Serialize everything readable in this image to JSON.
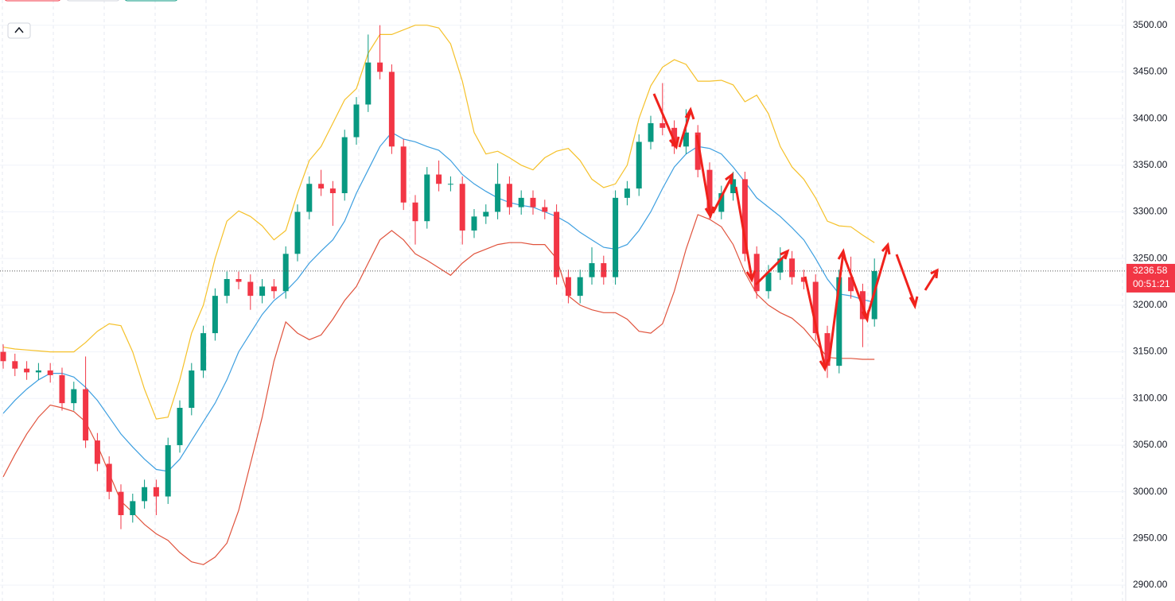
{
  "chart_data": {
    "type": "candlestick",
    "open": [
      3150,
      3140,
      3132,
      3128,
      3130,
      3125,
      3095,
      3110,
      3055,
      3030,
      3000,
      2975,
      2990,
      3005,
      2995,
      3050,
      3090,
      3130,
      3170,
      3210,
      3228,
      3225,
      3210,
      3220,
      3215,
      3255,
      3300,
      3330,
      3325,
      3320,
      3380,
      3415,
      3460,
      3450,
      3370,
      3310,
      3290,
      3340,
      3330,
      3330,
      3280,
      3295,
      3300,
      3330,
      3305,
      3315,
      3305,
      3300,
      3230,
      3210,
      3230,
      3245,
      3230,
      3315,
      3325,
      3375,
      3395,
      3390,
      3370,
      3385,
      3345,
      3300,
      3320,
      3335,
      3255,
      3215,
      3235,
      3250,
      3230,
      3225,
      3170,
      3135,
      3230,
      3215,
      3185
    ],
    "high": [
      3158,
      3148,
      3140,
      3138,
      3138,
      3133,
      3118,
      3145,
      3063,
      3038,
      3008,
      2998,
      3013,
      3013,
      3058,
      3098,
      3138,
      3178,
      3218,
      3236,
      3236,
      3233,
      3228,
      3228,
      3263,
      3308,
      3338,
      3345,
      3333,
      3388,
      3423,
      3490,
      3500,
      3458,
      3378,
      3318,
      3348,
      3355,
      3338,
      3338,
      3303,
      3308,
      3352,
      3338,
      3323,
      3323,
      3313,
      3308,
      3238,
      3238,
      3262,
      3253,
      3323,
      3333,
      3383,
      3403,
      3438,
      3398,
      3410,
      3393,
      3353,
      3328,
      3343,
      3343,
      3263,
      3243,
      3262,
      3258,
      3238,
      3233,
      3178,
      3238,
      3252,
      3223,
      3250
    ],
    "low": [
      3132,
      3124,
      3120,
      3120,
      3117,
      3087,
      3087,
      3047,
      3022,
      2992,
      2960,
      2967,
      2982,
      2975,
      2987,
      3042,
      3082,
      3122,
      3162,
      3202,
      3217,
      3195,
      3202,
      3207,
      3207,
      3247,
      3292,
      3317,
      3285,
      3312,
      3372,
      3407,
      3442,
      3362,
      3302,
      3265,
      3282,
      3322,
      3322,
      3265,
      3272,
      3287,
      3292,
      3297,
      3297,
      3297,
      3292,
      3222,
      3202,
      3202,
      3222,
      3222,
      3222,
      3307,
      3317,
      3367,
      3382,
      3362,
      3362,
      3337,
      3292,
      3292,
      3312,
      3247,
      3207,
      3207,
      3227,
      3222,
      3217,
      3162,
      3122,
      3127,
      3207,
      3155,
      3177
    ],
    "close": [
      3140,
      3132,
      3128,
      3130,
      3125,
      3095,
      3110,
      3055,
      3030,
      3000,
      2975,
      2990,
      3005,
      2995,
      3050,
      3090,
      3130,
      3170,
      3210,
      3228,
      3225,
      3210,
      3220,
      3215,
      3255,
      3300,
      3330,
      3325,
      3320,
      3380,
      3415,
      3460,
      3450,
      3370,
      3310,
      3290,
      3340,
      3330,
      3330,
      3280,
      3295,
      3300,
      3330,
      3305,
      3315,
      3305,
      3300,
      3230,
      3210,
      3230,
      3245,
      3230,
      3315,
      3325,
      3375,
      3395,
      3390,
      3370,
      3385,
      3345,
      3300,
      3320,
      3335,
      3255,
      3215,
      3235,
      3250,
      3230,
      3225,
      3170,
      3135,
      3230,
      3215,
      3185,
      3236.58
    ],
    "upper_band": [
      3155,
      3153,
      3152,
      3151,
      3150,
      3150,
      3150,
      3160,
      3172,
      3180,
      3178,
      3150,
      3110,
      3078,
      3080,
      3120,
      3170,
      3200,
      3250,
      3290,
      3301,
      3295,
      3285,
      3270,
      3280,
      3320,
      3355,
      3370,
      3395,
      3420,
      3432,
      3470,
      3490,
      3490,
      3495,
      3500,
      3500,
      3497,
      3480,
      3440,
      3385,
      3362,
      3365,
      3358,
      3350,
      3345,
      3358,
      3365,
      3368,
      3355,
      3335,
      3326,
      3330,
      3350,
      3400,
      3435,
      3455,
      3463,
      3458,
      3440,
      3440,
      3441,
      3436,
      3418,
      3425,
      3405,
      3370,
      3348,
      3335,
      3315,
      3290,
      3285,
      3284,
      3275,
      3267
    ],
    "middle_band": [
      3084,
      3098,
      3110,
      3120,
      3127,
      3127,
      3123,
      3112,
      3098,
      3080,
      3062,
      3048,
      3035,
      3024,
      3022,
      3035,
      3055,
      3075,
      3095,
      3120,
      3150,
      3170,
      3190,
      3205,
      3215,
      3228,
      3245,
      3258,
      3270,
      3290,
      3320,
      3345,
      3370,
      3385,
      3378,
      3375,
      3370,
      3366,
      3355,
      3340,
      3330,
      3322,
      3315,
      3310,
      3307,
      3305,
      3300,
      3295,
      3288,
      3278,
      3270,
      3262,
      3260,
      3265,
      3280,
      3300,
      3325,
      3348,
      3362,
      3370,
      3368,
      3362,
      3348,
      3332,
      3315,
      3305,
      3295,
      3283,
      3270,
      3250,
      3228,
      3212,
      3210,
      3206,
      3203
    ],
    "lower_band": [
      3016,
      3040,
      3062,
      3080,
      3093,
      3090,
      3086,
      3075,
      3050,
      3020,
      2990,
      2978,
      2965,
      2955,
      2948,
      2935,
      2925,
      2922,
      2930,
      2945,
      2980,
      3030,
      3080,
      3140,
      3182,
      3170,
      3163,
      3168,
      3185,
      3205,
      3220,
      3245,
      3270,
      3280,
      3270,
      3255,
      3248,
      3240,
      3232,
      3245,
      3255,
      3260,
      3265,
      3267,
      3267,
      3265,
      3265,
      3250,
      3210,
      3200,
      3195,
      3192,
      3192,
      3185,
      3172,
      3170,
      3180,
      3215,
      3260,
      3297,
      3292,
      3284,
      3265,
      3235,
      3212,
      3200,
      3192,
      3186,
      3175,
      3160,
      3144,
      3143,
      3143,
      3142,
      3142
    ],
    "up_color": "#089981",
    "down_color": "#f23645",
    "upper_band_color": "#f5c12a",
    "middle_band_color": "#3d9fe0",
    "lower_band_color": "#e0533d",
    "countdown": "00:51:21",
    "ylim": [
      2883,
      3527
    ],
    "yticks": [
      {
        "value": 2900,
        "label": "2900.00"
      },
      {
        "value": 2950,
        "label": "2950.00"
      },
      {
        "value": 3000,
        "label": "3000.00"
      },
      {
        "value": 3050,
        "label": "3050.00"
      },
      {
        "value": 3100,
        "label": "3100.00"
      },
      {
        "value": 3150,
        "label": "3150.00"
      },
      {
        "value": 3200,
        "label": "3200.00"
      },
      {
        "value": 3250,
        "label": "3250.00"
      },
      {
        "value": 3300,
        "label": "3300.00"
      },
      {
        "value": 3350,
        "label": "3350.00"
      },
      {
        "value": 3400,
        "label": "3400.00"
      },
      {
        "value": 3450,
        "label": "3450.00"
      },
      {
        "value": 3500,
        "label": "3500.00"
      }
    ],
    "grid": true
  }
}
